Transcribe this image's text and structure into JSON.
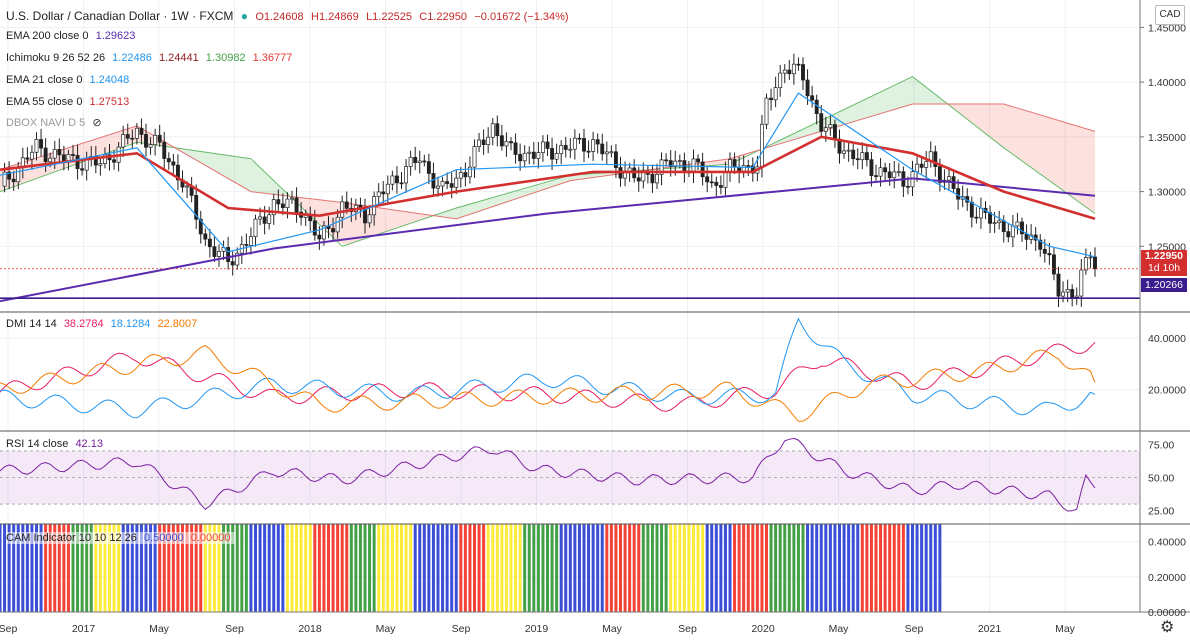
{
  "header": {
    "symbol": "U.S. Dollar / Canadian Dollar · 1W · FXCM",
    "open": "O1.24608",
    "high": "H1.24869",
    "low": "L1.22525",
    "close": "C1.22950",
    "change": "−0.01672 (−1.34%)"
  },
  "legends": {
    "ema200": {
      "label": "EMA 200 close 0",
      "value": "1.29623"
    },
    "ichimoku": {
      "label": "Ichimoku 9 26 52 26",
      "v1": "1.22486",
      "v2": "1.24441",
      "v3": "1.30982",
      "v4": "1.36777"
    },
    "ema21": {
      "label": "EMA 21 close 0",
      "value": "1.24048"
    },
    "ema55": {
      "label": "EMA 55 close 0",
      "value": "1.27513"
    },
    "dbox": {
      "label": "DBOX NAVI D 5"
    },
    "dmi": {
      "label": "DMI 14 14",
      "v1": "38.2784",
      "v2": "18.1284",
      "v3": "22.8007"
    },
    "rsi": {
      "label": "RSI 14 close",
      "value": "42.13"
    },
    "cam": {
      "label": "CAM Indicator 10 10 12 26",
      "v1": "0.50000",
      "v2": "0.00000"
    }
  },
  "currency_button": "CAD",
  "price_tags": {
    "last": "1.22950",
    "countdown": "1d 10h",
    "support": "1.20266"
  },
  "icons": {
    "visibility": "eye-slash-icon",
    "settings": "gear-icon"
  },
  "colors": {
    "ema200": "#5b2bb0",
    "ema21": "#2196f3",
    "ema55": "#d32f2f",
    "up_candle": "#26a69a",
    "down_candle": "#ef5350",
    "dmi_plus": "#e91e63",
    "dmi_minus": "#2196f3",
    "adx": "#f57c00",
    "rsi": "#7b1fa2",
    "cam": [
      "#3b4fd6",
      "#f44336",
      "#43a047",
      "#ffeb3b"
    ]
  },
  "chart_data": [
    {
      "type": "candlestick",
      "title": "U.S. Dollar / Canadian Dollar",
      "timeframe": "1W",
      "x_labels": [
        "Sep",
        "2017",
        "May",
        "Sep",
        "2018",
        "May",
        "Sep",
        "2019",
        "May",
        "Sep",
        "2020",
        "May",
        "Sep",
        "2021",
        "May"
      ],
      "y_ticks": [
        "1.45000",
        "1.40000",
        "1.35000",
        "1.30000",
        "1.25000"
      ],
      "ylim": [
        1.19,
        1.475
      ],
      "close_path": [
        [
          0,
          1.305
        ],
        [
          8,
          1.34
        ],
        [
          14,
          1.33
        ],
        [
          22,
          1.325
        ],
        [
          30,
          1.355
        ],
        [
          35,
          1.34
        ],
        [
          40,
          1.31
        ],
        [
          45,
          1.255
        ],
        [
          50,
          1.235
        ],
        [
          55,
          1.26
        ],
        [
          60,
          1.29
        ],
        [
          66,
          1.285
        ],
        [
          70,
          1.255
        ],
        [
          75,
          1.285
        ],
        [
          80,
          1.28
        ],
        [
          86,
          1.31
        ],
        [
          92,
          1.33
        ],
        [
          97,
          1.3
        ],
        [
          102,
          1.32
        ],
        [
          108,
          1.36
        ],
        [
          112,
          1.335
        ],
        [
          118,
          1.335
        ],
        [
          124,
          1.34
        ],
        [
          130,
          1.345
        ],
        [
          135,
          1.325
        ],
        [
          140,
          1.31
        ],
        [
          146,
          1.325
        ],
        [
          152,
          1.325
        ],
        [
          156,
          1.305
        ],
        [
          160,
          1.32
        ],
        [
          166,
          1.325
        ],
        [
          168,
          1.38
        ],
        [
          172,
          1.415
        ],
        [
          176,
          1.405
        ],
        [
          180,
          1.36
        ],
        [
          186,
          1.335
        ],
        [
          192,
          1.32
        ],
        [
          198,
          1.31
        ],
        [
          204,
          1.33
        ],
        [
          210,
          1.295
        ],
        [
          216,
          1.275
        ],
        [
          222,
          1.265
        ],
        [
          228,
          1.255
        ],
        [
          232,
          1.21
        ],
        [
          236,
          1.208
        ],
        [
          239,
          1.245
        ],
        [
          240,
          1.2295
        ]
      ],
      "last_close": 1.2295,
      "support_line": 1.20266,
      "series": [
        {
          "name": "EMA 200",
          "values": [
            [
              0,
              1.2
            ],
            [
              60,
              1.248
            ],
            [
              120,
              1.28
            ],
            [
              170,
              1.3
            ],
            [
              200,
              1.312
            ],
            [
              240,
              1.2962
            ]
          ]
        },
        {
          "name": "EMA 55",
          "values": [
            [
              0,
              1.32
            ],
            [
              30,
              1.335
            ],
            [
              50,
              1.285
            ],
            [
              70,
              1.278
            ],
            [
              100,
              1.3
            ],
            [
              130,
              1.318
            ],
            [
              165,
              1.318
            ],
            [
              180,
              1.35
            ],
            [
              200,
              1.335
            ],
            [
              220,
              1.3
            ],
            [
              240,
              1.2751
            ]
          ]
        },
        {
          "name": "EMA 21",
          "values": [
            [
              0,
              1.315
            ],
            [
              30,
              1.34
            ],
            [
              50,
              1.245
            ],
            [
              70,
              1.265
            ],
            [
              100,
              1.32
            ],
            [
              130,
              1.325
            ],
            [
              165,
              1.322
            ],
            [
              175,
              1.39
            ],
            [
              200,
              1.32
            ],
            [
              230,
              1.25
            ],
            [
              240,
              1.2405
            ]
          ]
        }
      ],
      "ichimoku_cloud": {
        "span_a": [
          [
            0,
            1.3
          ],
          [
            30,
            1.345
          ],
          [
            55,
            1.33
          ],
          [
            75,
            1.25
          ],
          [
            100,
            1.285
          ],
          [
            125,
            1.315
          ],
          [
            160,
            1.325
          ],
          [
            200,
            1.405
          ],
          [
            220,
            1.34
          ],
          [
            240,
            1.28
          ]
        ],
        "span_b": [
          [
            0,
            1.32
          ],
          [
            30,
            1.36
          ],
          [
            55,
            1.3
          ],
          [
            75,
            1.29
          ],
          [
            100,
            1.275
          ],
          [
            125,
            1.31
          ],
          [
            160,
            1.33
          ],
          [
            200,
            1.38
          ],
          [
            220,
            1.38
          ],
          [
            240,
            1.355
          ]
        ]
      }
    },
    {
      "type": "line",
      "title": "DMI 14 14",
      "y_ticks": [
        "40.0000",
        "20.0000"
      ],
      "ylim": [
        4,
        50
      ],
      "series": [
        {
          "name": "+DI",
          "values": [
            [
              0,
              19
            ],
            [
              30,
              33
            ],
            [
              60,
              17
            ],
            [
              90,
              20
            ],
            [
              120,
              18
            ],
            [
              150,
              14
            ],
            [
              170,
              20
            ],
            [
              180,
              32
            ],
            [
              200,
              22
            ],
            [
              230,
              34
            ],
            [
              240,
              38.28
            ]
          ]
        },
        {
          "name": "-DI",
          "values": [
            [
              0,
              17
            ],
            [
              30,
              12
            ],
            [
              60,
              22
            ],
            [
              90,
              18
            ],
            [
              120,
              24
            ],
            [
              150,
              17
            ],
            [
              170,
              18
            ],
            [
              175,
              47
            ],
            [
              185,
              30
            ],
            [
              200,
              18
            ],
            [
              230,
              12
            ],
            [
              240,
              18.13
            ]
          ]
        },
        {
          "name": "ADX",
          "values": [
            [
              0,
              20
            ],
            [
              25,
              28
            ],
            [
              45,
              34
            ],
            [
              70,
              14
            ],
            [
              100,
              16
            ],
            [
              130,
              18
            ],
            [
              160,
              20
            ],
            [
              175,
              10
            ],
            [
              190,
              22
            ],
            [
              215,
              27
            ],
            [
              232,
              34
            ],
            [
              240,
              22.8
            ]
          ]
        }
      ]
    },
    {
      "type": "line",
      "title": "RSI 14 close",
      "y_ticks": [
        "75.00",
        "50.00",
        "25.00"
      ],
      "ylim": [
        15,
        85
      ],
      "bands": [
        30,
        70
      ],
      "series": [
        {
          "name": "RSI",
          "values": [
            [
              0,
              55
            ],
            [
              30,
              62
            ],
            [
              45,
              30
            ],
            [
              60,
              55
            ],
            [
              75,
              48
            ],
            [
              108,
              72
            ],
            [
              118,
              56
            ],
            [
              140,
              48
            ],
            [
              165,
              50
            ],
            [
              172,
              80
            ],
            [
              185,
              55
            ],
            [
              200,
              40
            ],
            [
              210,
              45
            ],
            [
              230,
              36
            ],
            [
              236,
              25
            ],
            [
              238,
              48
            ],
            [
              240,
              42.13
            ]
          ]
        }
      ]
    },
    {
      "type": "bar",
      "title": "CAM Indicator 10 10 12 26",
      "y_ticks": [
        "0.40000",
        "0.20000",
        "0.00000"
      ],
      "ylim": [
        0,
        0.5
      ],
      "value": 0.5,
      "color_sequence_note": "weekly bars colored blue / red / green / yellow",
      "segments": [
        [
          "#3b4fd6",
          10
        ],
        [
          "#f44336",
          6
        ],
        [
          "#43a047",
          5
        ],
        [
          "#ffeb3b",
          6
        ],
        [
          "#3b4fd6",
          8
        ],
        [
          "#f44336",
          10
        ],
        [
          "#ffeb3b",
          4
        ],
        [
          "#43a047",
          6
        ],
        [
          "#3b4fd6",
          8
        ],
        [
          "#ffeb3b",
          6
        ],
        [
          "#f44336",
          8
        ],
        [
          "#43a047",
          6
        ],
        [
          "#ffeb3b",
          8
        ],
        [
          "#3b4fd6",
          10
        ],
        [
          "#f44336",
          6
        ],
        [
          "#ffeb3b",
          8
        ],
        [
          "#43a047",
          8
        ],
        [
          "#3b4fd6",
          10
        ],
        [
          "#f44336",
          8
        ],
        [
          "#43a047",
          6
        ],
        [
          "#ffeb3b",
          8
        ],
        [
          "#3b4fd6",
          6
        ],
        [
          "#f44336",
          8
        ],
        [
          "#43a047",
          8
        ],
        [
          "#3b4fd6",
          12
        ],
        [
          "#f44336",
          10
        ],
        [
          "#3b4fd6",
          8
        ]
      ]
    }
  ]
}
